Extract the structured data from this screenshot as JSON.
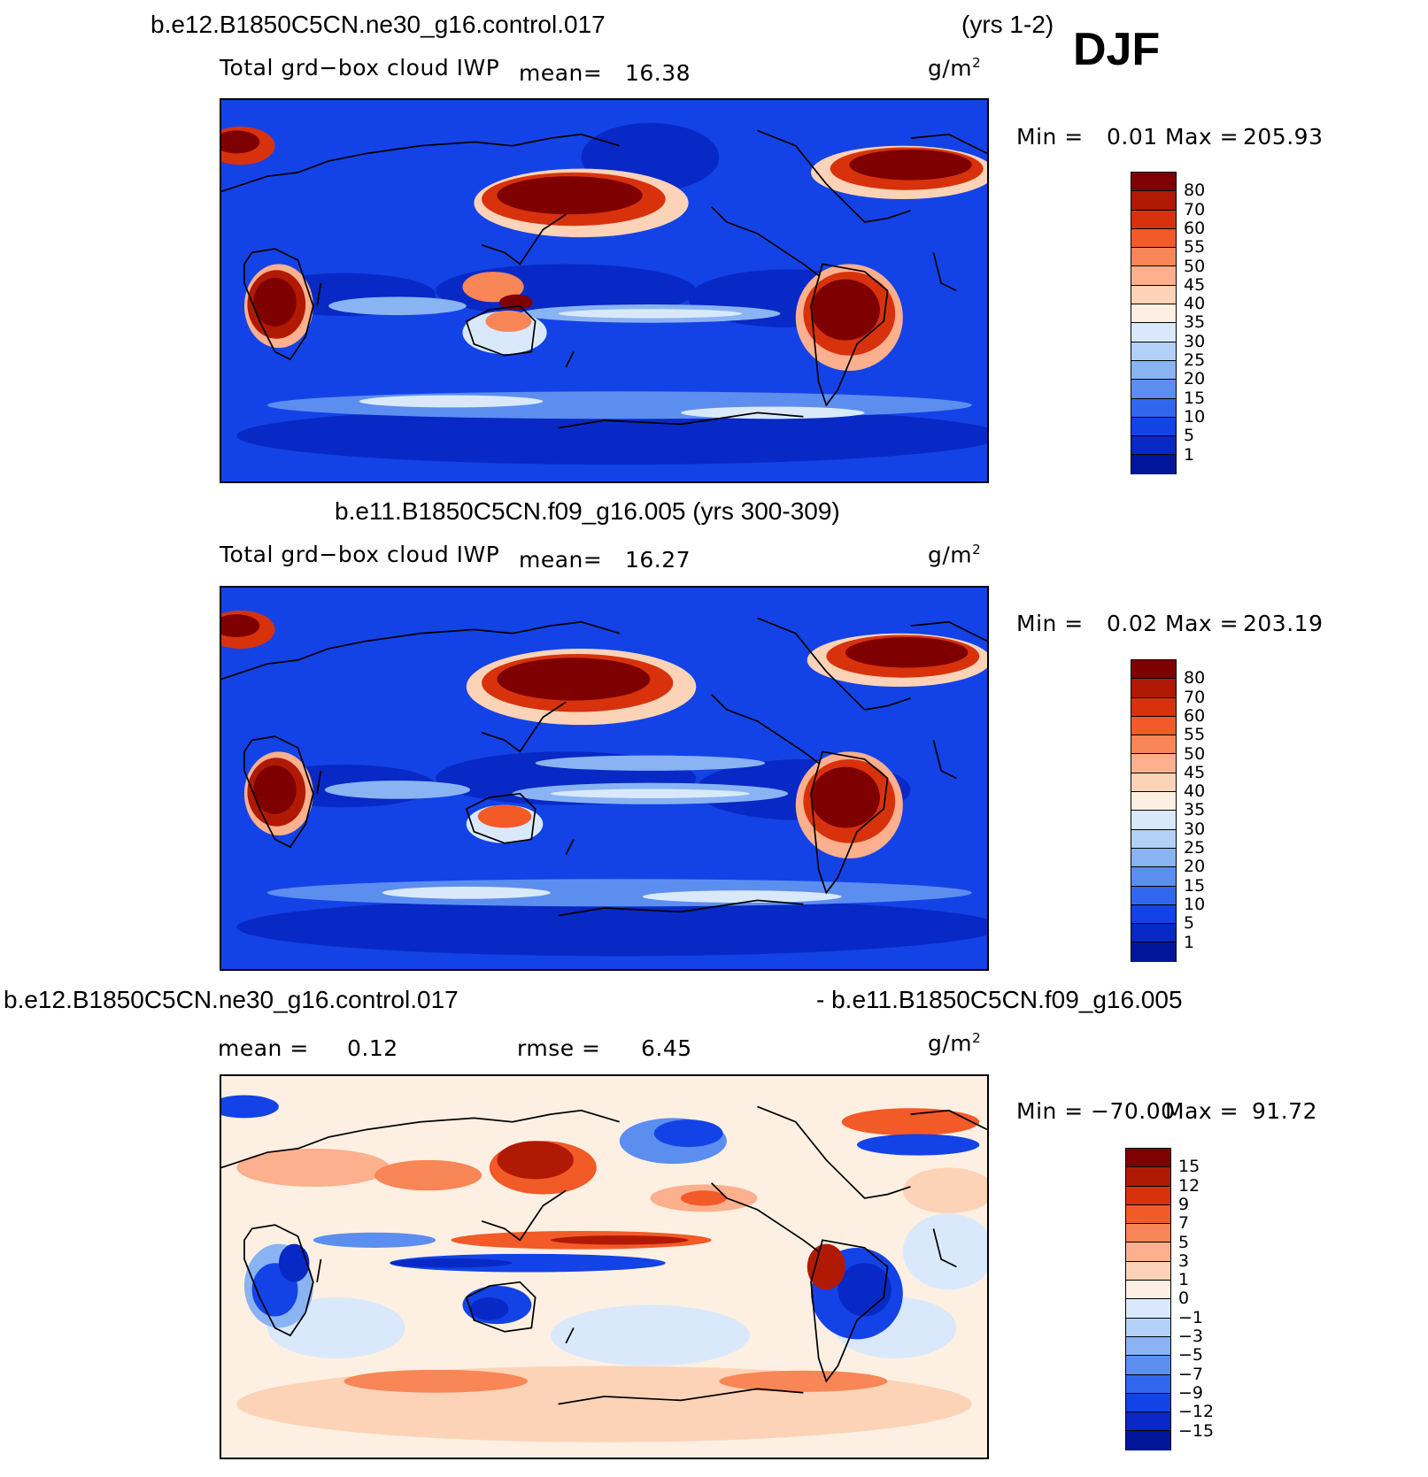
{
  "season": "DJF",
  "panels": [
    {
      "title_left": "b.e12.B1850C5CN.ne30_g16.control.017",
      "title_right": "(yrs 1-2)",
      "field": "Total grd−box cloud IWP",
      "mean_label": "mean=",
      "mean_value": "16.38",
      "unit": "g/m",
      "unit_exp": "2",
      "min_label": "Min =",
      "min_value": "0.01",
      "max_label": "Max =",
      "max_value": "205.93",
      "colorbar": {
        "colors": [
          "#7f0000",
          "#b01a05",
          "#d8320d",
          "#f25a28",
          "#f98656",
          "#fcb08e",
          "#fdd3b7",
          "#fdf0e3",
          "#d9e9fb",
          "#b3d0f6",
          "#89b3f3",
          "#5c8ef0",
          "#3167ef",
          "#1343e7",
          "#0829c5",
          "#00169a"
        ],
        "labels": [
          "80",
          "70",
          "60",
          "55",
          "50",
          "45",
          "40",
          "35",
          "30",
          "25",
          "20",
          "15",
          "10",
          "5",
          "1"
        ]
      }
    },
    {
      "title_left": "b.e11.B1850C5CN.f09_g16.005 (yrs 300-309)",
      "field": "Total grd−box cloud IWP",
      "mean_label": "mean=",
      "mean_value": "16.27",
      "unit": "g/m",
      "unit_exp": "2",
      "min_label": "Min =",
      "min_value": "0.02",
      "max_label": "Max =",
      "max_value": "203.19",
      "colorbar": {
        "colors": [
          "#7f0000",
          "#b01a05",
          "#d8320d",
          "#f25a28",
          "#f98656",
          "#fcb08e",
          "#fdd3b7",
          "#fdf0e3",
          "#d9e9fb",
          "#b3d0f6",
          "#89b3f3",
          "#5c8ef0",
          "#3167ef",
          "#1343e7",
          "#0829c5",
          "#00169a"
        ],
        "labels": [
          "80",
          "70",
          "60",
          "55",
          "50",
          "45",
          "40",
          "35",
          "30",
          "25",
          "20",
          "15",
          "10",
          "5",
          "1"
        ]
      }
    },
    {
      "title_left": "b.e12.B1850C5CN.ne30_g16.control.017",
      "title_right": "- b.e11.B1850C5CN.f09_g16.005",
      "mean_label": "mean =",
      "mean_value": "0.12",
      "rmse_label": "rmse =",
      "rmse_value": "6.45",
      "unit": "g/m",
      "unit_exp": "2",
      "min_label": "Min =",
      "min_value": "−70.00",
      "max_label": "Max =",
      "max_value": "91.72",
      "colorbar": {
        "colors": [
          "#7f0000",
          "#b01a05",
          "#d8320d",
          "#f25a28",
          "#f98656",
          "#fcb08e",
          "#fdd3b7",
          "#fdf0e3",
          "#d9e9fb",
          "#b3d0f6",
          "#89b3f3",
          "#5c8ef0",
          "#3167ef",
          "#1343e7",
          "#0829c5",
          "#00169a"
        ],
        "labels": [
          "15",
          "12",
          "9",
          "7",
          "5",
          "3",
          "1",
          "0",
          "−1",
          "−3",
          "−5",
          "−7",
          "−9",
          "−12",
          "−15"
        ]
      }
    }
  ]
}
